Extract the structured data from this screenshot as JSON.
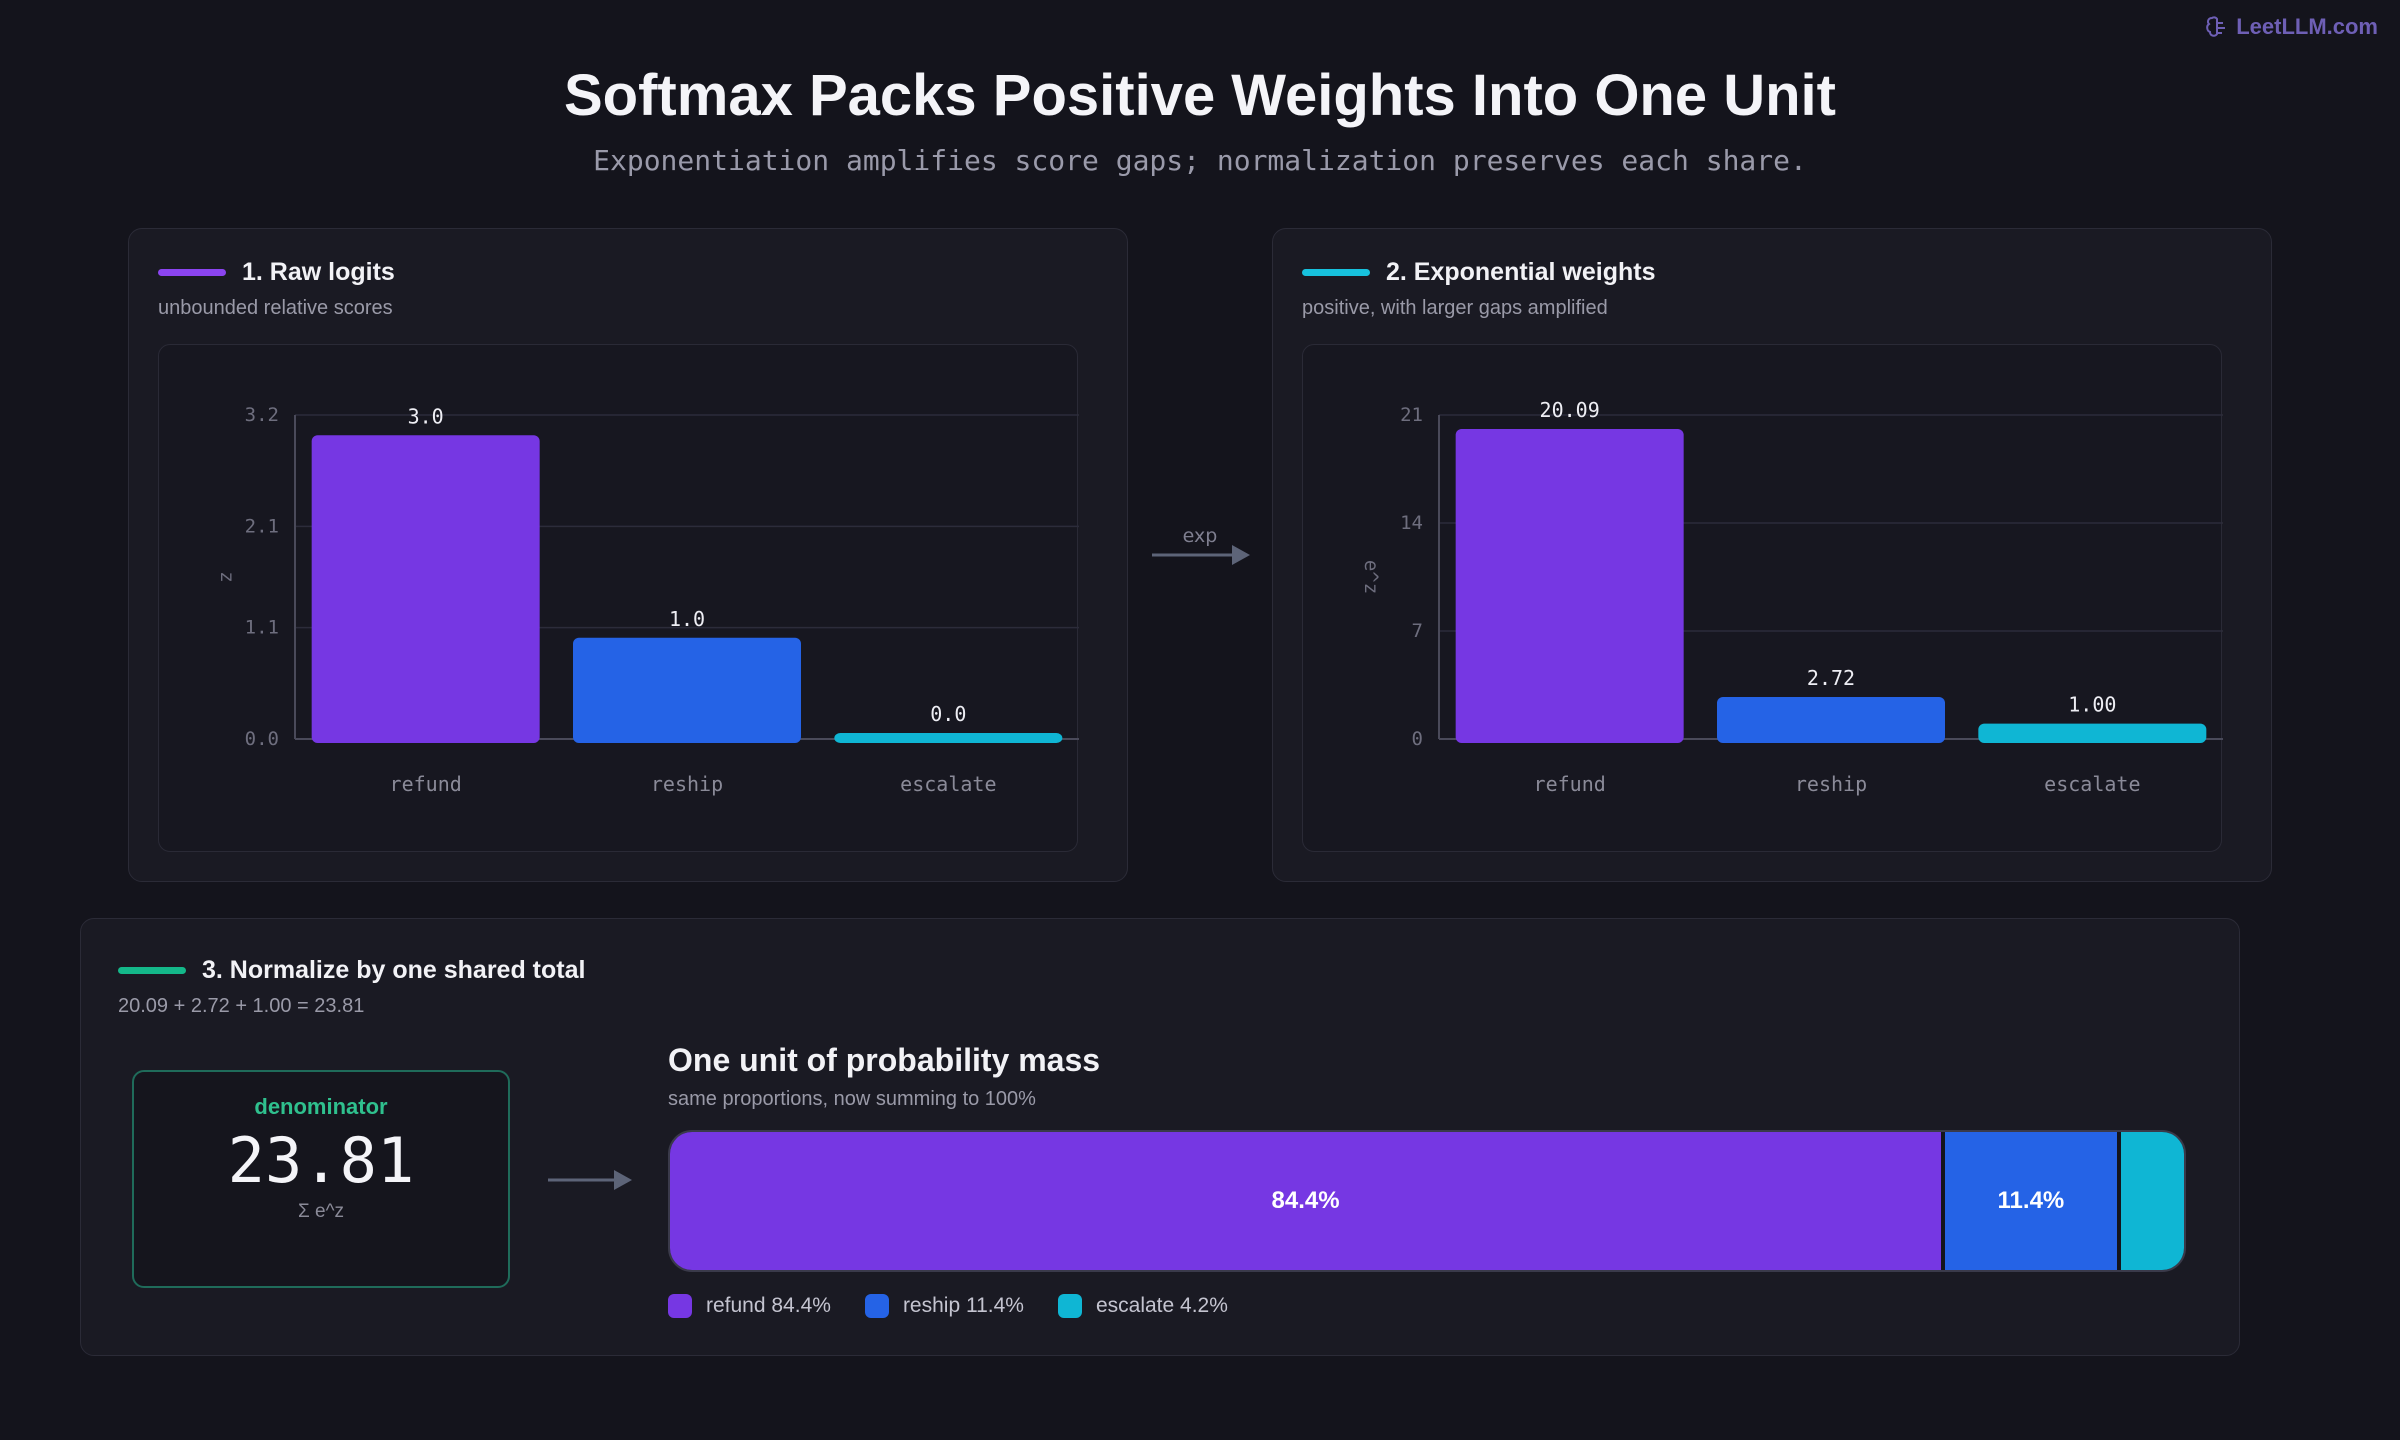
{
  "brand": "LeetLLM.com",
  "title": "Softmax Packs Positive Weights Into One Unit",
  "subtitle": "Exponentiation amplifies score gaps; normalization preserves each share.",
  "colors": {
    "refund": "#7637e3",
    "reship": "#2563e6",
    "escalate": "#0fb6d4",
    "panel1": "#7c3aed",
    "panel2": "#06b6d4",
    "panel3": "#10b981"
  },
  "panel1": {
    "title": "1. Raw logits",
    "subtitle": "unbounded relative scores"
  },
  "panel2": {
    "title": "2. Exponential weights",
    "subtitle": "positive, with larger gaps amplified"
  },
  "arrow_label": "exp",
  "panel3": {
    "title": "3. Normalize by one shared total",
    "subtitle": "20.09 + 2.72 + 1.00 = 23.81",
    "denominator_label": "denominator",
    "denominator_value": "23.81",
    "denominator_sub": "Σ e^z",
    "unit_title": "One unit of probability mass",
    "unit_sub": "same proportions, now summing to 100%"
  },
  "chart_data": [
    {
      "type": "bar",
      "categories": [
        "refund",
        "reship",
        "escalate"
      ],
      "values": [
        3.0,
        1.0,
        0.0
      ],
      "value_labels": [
        "3.0",
        "1.0",
        "0.0"
      ],
      "ylabel": "z",
      "ylim": [
        0,
        3.2
      ],
      "yticks": [
        0.0,
        1.1,
        2.1,
        3.2
      ],
      "ytick_labels": [
        "0.0",
        "1.1",
        "2.1",
        "3.2"
      ],
      "grid": true
    },
    {
      "type": "bar",
      "categories": [
        "refund",
        "reship",
        "escalate"
      ],
      "values": [
        20.09,
        2.72,
        1.0
      ],
      "value_labels": [
        "20.09",
        "2.72",
        "1.00"
      ],
      "ylabel": "e^z",
      "ylim": [
        0,
        21
      ],
      "yticks": [
        0,
        7,
        14,
        21
      ],
      "ytick_labels": [
        "0",
        "7",
        "14",
        "21"
      ],
      "grid": true
    },
    {
      "type": "bar",
      "orientation": "stacked-horizontal",
      "categories": [
        "refund",
        "reship",
        "escalate"
      ],
      "values": [
        84.4,
        11.4,
        4.2
      ],
      "segment_labels": [
        "84.4%",
        "11.4%",
        ""
      ],
      "legend": [
        "refund 84.4%",
        "reship 11.4%",
        "escalate 4.2%"
      ]
    }
  ]
}
